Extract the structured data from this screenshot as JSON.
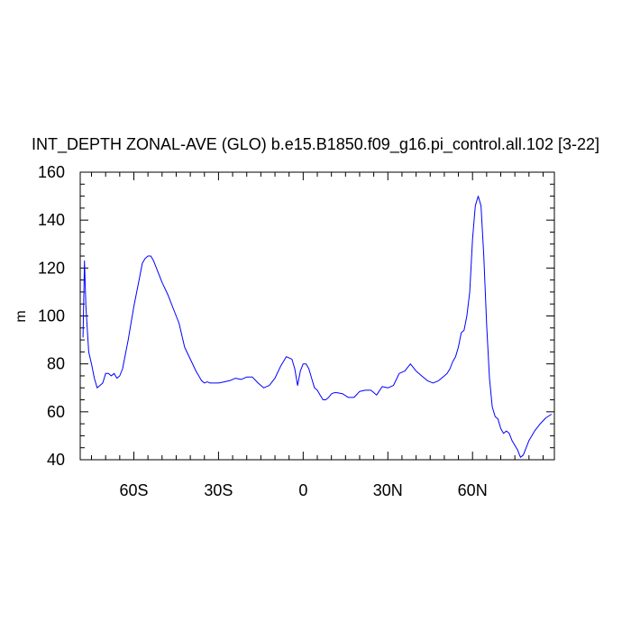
{
  "chart_data": {
    "type": "line",
    "title": "INT_DEPTH ZONAL-AVE (GLO) b.e15.B1850.f09_g16.pi_control.all.102 [3-22]",
    "xlabel": "",
    "ylabel": "m",
    "xlim": [
      -79,
      89
    ],
    "ylim": [
      40,
      160
    ],
    "x_ticks": [
      {
        "value": -60,
        "label": "60S"
      },
      {
        "value": -30,
        "label": "30S"
      },
      {
        "value": 0,
        "label": "0"
      },
      {
        "value": 30,
        "label": "30N"
      },
      {
        "value": 60,
        "label": "60N"
      }
    ],
    "y_ticks": [
      40,
      60,
      80,
      100,
      120,
      140,
      160
    ],
    "grid": false,
    "series": [
      {
        "color": "#0000ff",
        "x": [
          -78,
          -77.5,
          -77,
          -76,
          -75,
          -74,
          -73,
          -72,
          -71,
          -70,
          -69,
          -68,
          -67,
          -66,
          -65,
          -64,
          -62,
          -60,
          -58,
          -57,
          -56,
          -55,
          -54,
          -53,
          -52,
          -50,
          -48,
          -46,
          -44,
          -42,
          -40,
          -38,
          -36,
          -35,
          -34,
          -33,
          -32,
          -30,
          -28,
          -26,
          -24,
          -22,
          -20,
          -18,
          -16,
          -14,
          -12,
          -10,
          -8,
          -6,
          -4,
          -3,
          -2,
          -1,
          0,
          1,
          2,
          3,
          4,
          5,
          6,
          7,
          8,
          9,
          10,
          11,
          12,
          14,
          16,
          18,
          20,
          22,
          24,
          26,
          28,
          30,
          32,
          34,
          36,
          38,
          40,
          42,
          44,
          46,
          48,
          50,
          51,
          52,
          53,
          54,
          55,
          56,
          57,
          58,
          59,
          60,
          61,
          62,
          63,
          64,
          65,
          66,
          67,
          68,
          69,
          70,
          71,
          72,
          73,
          74,
          75,
          76,
          77,
          78,
          80,
          82,
          84,
          86,
          88
        ],
        "y": [
          91,
          123,
          104,
          85,
          80,
          74,
          70,
          71,
          72,
          76,
          76,
          75,
          76,
          74,
          75,
          78,
          90,
          104,
          116,
          122,
          124,
          125,
          125,
          123,
          120,
          114,
          109,
          103,
          97,
          87,
          82,
          77,
          73,
          72,
          72.5,
          72,
          72,
          72,
          72.5,
          73,
          74,
          73.5,
          74.5,
          74.5,
          72,
          70,
          71,
          74,
          79,
          83,
          82,
          78,
          71,
          77,
          80,
          80,
          78,
          74,
          70,
          69,
          67,
          65,
          65,
          66,
          67.5,
          68,
          68,
          67.5,
          66,
          66,
          68.5,
          69,
          69,
          67,
          70.5,
          70,
          71,
          76,
          77,
          80,
          77,
          75,
          73,
          72,
          73,
          75,
          76,
          78,
          81,
          83,
          87,
          93,
          94,
          100,
          110,
          132,
          146,
          150,
          146,
          125,
          96,
          74,
          62,
          58,
          57,
          53,
          51,
          52,
          51,
          48,
          46,
          44,
          41,
          42,
          48,
          52,
          55,
          57.5,
          59
        ]
      }
    ]
  }
}
